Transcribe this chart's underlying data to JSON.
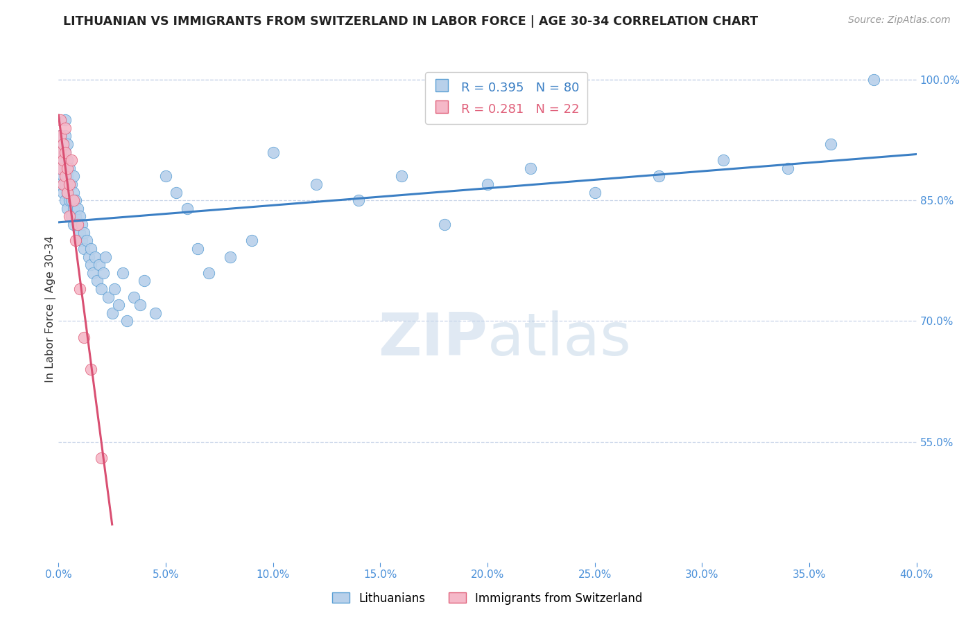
{
  "title": "LITHUANIAN VS IMMIGRANTS FROM SWITZERLAND IN LABOR FORCE | AGE 30-34 CORRELATION CHART",
  "source": "Source: ZipAtlas.com",
  "ylabel": "In Labor Force | Age 30-34",
  "xlim": [
    0.0,
    0.4
  ],
  "ylim": [
    0.4,
    1.03
  ],
  "xticks": [
    0.0,
    0.05,
    0.1,
    0.15,
    0.2,
    0.25,
    0.3,
    0.35,
    0.4
  ],
  "yticks": [
    0.55,
    0.7,
    0.85,
    1.0
  ],
  "ytick_labels_right": [
    "55.0%",
    "70.0%",
    "85.0%",
    "100.0%"
  ],
  "xtick_labels": [
    "0.0%",
    "5.0%",
    "10.0%",
    "15.0%",
    "20.0%",
    "25.0%",
    "30.0%",
    "35.0%",
    "40.0%"
  ],
  "blue_color": "#b8d0ea",
  "pink_color": "#f5b8c8",
  "blue_edge_color": "#5a9fd4",
  "pink_edge_color": "#e0607a",
  "blue_line_color": "#3b7fc4",
  "pink_line_color": "#d94f72",
  "legend_blue_r": "R = 0.395",
  "legend_blue_n": "N = 80",
  "legend_pink_r": "R = 0.281",
  "legend_pink_n": "N = 22",
  "axis_color": "#4a90d9",
  "grid_color": "#c8d4e8",
  "title_color": "#222222",
  "watermark_zip": "ZIP",
  "watermark_atlas": "atlas",
  "blue_x": [
    0.001,
    0.001,
    0.001,
    0.001,
    0.002,
    0.002,
    0.002,
    0.002,
    0.003,
    0.003,
    0.003,
    0.003,
    0.003,
    0.003,
    0.004,
    0.004,
    0.004,
    0.004,
    0.004,
    0.005,
    0.005,
    0.005,
    0.006,
    0.006,
    0.006,
    0.007,
    0.007,
    0.007,
    0.007,
    0.008,
    0.008,
    0.009,
    0.009,
    0.01,
    0.01,
    0.011,
    0.011,
    0.012,
    0.012,
    0.013,
    0.014,
    0.015,
    0.015,
    0.016,
    0.017,
    0.018,
    0.019,
    0.02,
    0.021,
    0.022,
    0.023,
    0.025,
    0.026,
    0.028,
    0.03,
    0.032,
    0.035,
    0.038,
    0.04,
    0.045,
    0.05,
    0.055,
    0.06,
    0.065,
    0.07,
    0.08,
    0.09,
    0.1,
    0.12,
    0.14,
    0.16,
    0.18,
    0.2,
    0.22,
    0.25,
    0.28,
    0.31,
    0.34,
    0.36,
    0.38
  ],
  "blue_y": [
    0.87,
    0.89,
    0.91,
    0.93,
    0.86,
    0.88,
    0.9,
    0.92,
    0.85,
    0.87,
    0.89,
    0.91,
    0.93,
    0.95,
    0.84,
    0.86,
    0.88,
    0.9,
    0.92,
    0.85,
    0.87,
    0.89,
    0.83,
    0.85,
    0.87,
    0.82,
    0.84,
    0.86,
    0.88,
    0.83,
    0.85,
    0.82,
    0.84,
    0.81,
    0.83,
    0.8,
    0.82,
    0.79,
    0.81,
    0.8,
    0.78,
    0.77,
    0.79,
    0.76,
    0.78,
    0.75,
    0.77,
    0.74,
    0.76,
    0.78,
    0.73,
    0.71,
    0.74,
    0.72,
    0.76,
    0.7,
    0.73,
    0.72,
    0.75,
    0.71,
    0.88,
    0.86,
    0.84,
    0.79,
    0.76,
    0.78,
    0.8,
    0.91,
    0.87,
    0.85,
    0.88,
    0.82,
    0.87,
    0.89,
    0.86,
    0.88,
    0.9,
    0.89,
    0.92,
    1.0
  ],
  "pink_x": [
    0.001,
    0.001,
    0.001,
    0.001,
    0.002,
    0.002,
    0.002,
    0.003,
    0.003,
    0.003,
    0.004,
    0.004,
    0.005,
    0.005,
    0.006,
    0.007,
    0.008,
    0.009,
    0.01,
    0.012,
    0.015,
    0.02
  ],
  "pink_y": [
    0.89,
    0.91,
    0.93,
    0.95,
    0.87,
    0.9,
    0.92,
    0.88,
    0.91,
    0.94,
    0.86,
    0.89,
    0.83,
    0.87,
    0.9,
    0.85,
    0.8,
    0.82,
    0.74,
    0.68,
    0.64,
    0.53
  ],
  "blue_trend_x": [
    0.0,
    0.4
  ],
  "blue_trend_y": [
    0.828,
    0.988
  ],
  "pink_trend_x": [
    0.0,
    0.022
  ],
  "pink_trend_y": [
    0.96,
    0.58
  ]
}
